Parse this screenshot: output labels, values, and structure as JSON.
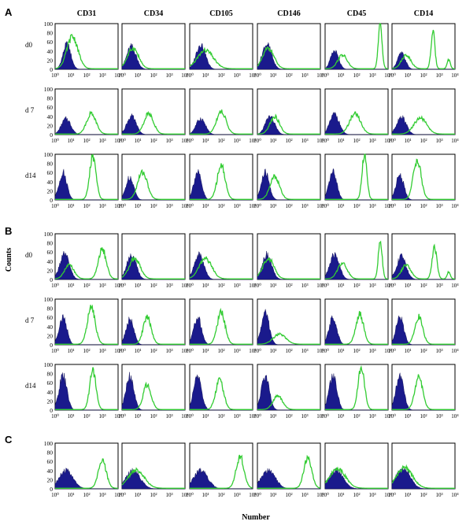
{
  "figure": {
    "y_axis_label": "Counts",
    "x_axis_label": "Number",
    "colors": {
      "control_fill": "#1a1a8c",
      "marker_line": "#33cc33",
      "frame": "#000000"
    }
  },
  "chart_data": {
    "type": "histogram-grid",
    "x_scale": "log",
    "x_range": [
      1,
      10000
    ],
    "x_tick_labels": [
      "10⁰",
      "10¹",
      "10²",
      "10³",
      "10⁴"
    ],
    "y_range": [
      0,
      100
    ],
    "y_tick_labels": [
      "0",
      "20",
      "40",
      "60",
      "80",
      "100"
    ],
    "columns": [
      "CD31",
      "CD34",
      "CD105",
      "CD146",
      "CD45",
      "CD14"
    ],
    "panel_groups": [
      {
        "label": "A",
        "rows": [
          {
            "label": "d0",
            "cells": [
              {
                "control": {
                  "mu": 0.75,
                  "sigma": 0.25,
                  "height": 55
                },
                "marker": [
                  {
                    "mu": 1.1,
                    "sigma": 0.35,
                    "height": 70
                  }
                ]
              },
              {
                "control": {
                  "mu": 0.6,
                  "sigma": 0.3,
                  "height": 50
                },
                "marker": [
                  {
                    "mu": 0.7,
                    "sigma": 0.35,
                    "height": 45
                  }
                ]
              },
              {
                "control": {
                  "mu": 0.7,
                  "sigma": 0.3,
                  "height": 55
                },
                "marker": [
                  {
                    "mu": 1.0,
                    "sigma": 0.5,
                    "height": 40
                  }
                ]
              },
              {
                "control": {
                  "mu": 0.6,
                  "sigma": 0.3,
                  "height": 55
                },
                "marker": [
                  {
                    "mu": 0.7,
                    "sigma": 0.35,
                    "height": 45
                  }
                ]
              },
              {
                "control": {
                  "mu": 0.6,
                  "sigma": 0.25,
                  "height": 40
                },
                "marker": [
                  {
                    "mu": 1.1,
                    "sigma": 0.3,
                    "height": 30
                  },
                  {
                    "mu": 3.5,
                    "sigma": 0.12,
                    "height": 95
                  }
                ]
              },
              {
                "control": {
                  "mu": 0.6,
                  "sigma": 0.25,
                  "height": 35
                },
                "marker": [
                  {
                    "mu": 0.9,
                    "sigma": 0.3,
                    "height": 30
                  },
                  {
                    "mu": 2.6,
                    "sigma": 0.12,
                    "height": 80
                  },
                  {
                    "mu": 3.6,
                    "sigma": 0.1,
                    "height": 20
                  }
                ]
              }
            ]
          },
          {
            "label": "d 7",
            "cells": [
              {
                "control": {
                  "mu": 0.7,
                  "sigma": 0.3,
                  "height": 35
                },
                "marker": [
                  {
                    "mu": 2.3,
                    "sigma": 0.3,
                    "height": 45
                  }
                ]
              },
              {
                "control": {
                  "mu": 0.6,
                  "sigma": 0.3,
                  "height": 40
                },
                "marker": [
                  {
                    "mu": 1.7,
                    "sigma": 0.3,
                    "height": 45
                  }
                ]
              },
              {
                "control": {
                  "mu": 0.7,
                  "sigma": 0.3,
                  "height": 35
                },
                "marker": [
                  {
                    "mu": 2.0,
                    "sigma": 0.3,
                    "height": 50
                  }
                ]
              },
              {
                "control": {
                  "mu": 0.8,
                  "sigma": 0.3,
                  "height": 40
                },
                "marker": [
                  {
                    "mu": 1.1,
                    "sigma": 0.3,
                    "height": 38
                  }
                ]
              },
              {
                "control": {
                  "mu": 0.6,
                  "sigma": 0.3,
                  "height": 45
                },
                "marker": [
                  {
                    "mu": 1.9,
                    "sigma": 0.35,
                    "height": 45
                  }
                ]
              },
              {
                "control": {
                  "mu": 0.6,
                  "sigma": 0.3,
                  "height": 40
                },
                "marker": [
                  {
                    "mu": 1.8,
                    "sigma": 0.4,
                    "height": 35
                  }
                ]
              }
            ]
          },
          {
            "label": "d14",
            "cells": [
              {
                "control": {
                  "mu": 0.5,
                  "sigma": 0.25,
                  "height": 60
                },
                "marker": [
                  {
                    "mu": 2.4,
                    "sigma": 0.2,
                    "height": 95
                  }
                ]
              },
              {
                "control": {
                  "mu": 0.5,
                  "sigma": 0.25,
                  "height": 50
                },
                "marker": [
                  {
                    "mu": 1.3,
                    "sigma": 0.3,
                    "height": 60
                  }
                ]
              },
              {
                "control": {
                  "mu": 0.5,
                  "sigma": 0.25,
                  "height": 60
                },
                "marker": [
                  {
                    "mu": 2.0,
                    "sigma": 0.25,
                    "height": 75
                  }
                ]
              },
              {
                "control": {
                  "mu": 0.5,
                  "sigma": 0.25,
                  "height": 60
                },
                "marker": [
                  {
                    "mu": 1.1,
                    "sigma": 0.3,
                    "height": 50
                  }
                ]
              },
              {
                "control": {
                  "mu": 0.5,
                  "sigma": 0.25,
                  "height": 60
                },
                "marker": [
                  {
                    "mu": 2.5,
                    "sigma": 0.15,
                    "height": 100
                  }
                ]
              },
              {
                "control": {
                  "mu": 0.5,
                  "sigma": 0.25,
                  "height": 55
                },
                "marker": [
                  {
                    "mu": 1.6,
                    "sigma": 0.25,
                    "height": 85
                  }
                ]
              }
            ]
          }
        ]
      },
      {
        "label": "B",
        "rows": [
          {
            "label": "d0",
            "cells": [
              {
                "control": {
                  "mu": 0.6,
                  "sigma": 0.3,
                  "height": 55
                },
                "marker": [
                  {
                    "mu": 0.9,
                    "sigma": 0.3,
                    "height": 30
                  },
                  {
                    "mu": 3.0,
                    "sigma": 0.25,
                    "height": 65
                  }
                ]
              },
              {
                "control": {
                  "mu": 0.6,
                  "sigma": 0.3,
                  "height": 55
                },
                "marker": [
                  {
                    "mu": 0.8,
                    "sigma": 0.35,
                    "height": 45
                  }
                ]
              },
              {
                "control": {
                  "mu": 0.6,
                  "sigma": 0.3,
                  "height": 55
                },
                "marker": [
                  {
                    "mu": 1.0,
                    "sigma": 0.4,
                    "height": 45
                  }
                ]
              },
              {
                "control": {
                  "mu": 0.6,
                  "sigma": 0.3,
                  "height": 55
                },
                "marker": [
                  {
                    "mu": 0.7,
                    "sigma": 0.35,
                    "height": 45
                  }
                ]
              },
              {
                "control": {
                  "mu": 0.6,
                  "sigma": 0.3,
                  "height": 55
                },
                "marker": [
                  {
                    "mu": 1.1,
                    "sigma": 0.3,
                    "height": 35
                  },
                  {
                    "mu": 3.5,
                    "sigma": 0.12,
                    "height": 85
                  }
                ]
              },
              {
                "control": {
                  "mu": 0.6,
                  "sigma": 0.3,
                  "height": 50
                },
                "marker": [
                  {
                    "mu": 0.9,
                    "sigma": 0.3,
                    "height": 30
                  },
                  {
                    "mu": 2.7,
                    "sigma": 0.15,
                    "height": 70
                  },
                  {
                    "mu": 3.6,
                    "sigma": 0.1,
                    "height": 15
                  }
                ]
              }
            ]
          },
          {
            "label": "d 7",
            "cells": [
              {
                "control": {
                  "mu": 0.5,
                  "sigma": 0.25,
                  "height": 60
                },
                "marker": [
                  {
                    "mu": 2.3,
                    "sigma": 0.25,
                    "height": 80
                  }
                ]
              },
              {
                "control": {
                  "mu": 0.5,
                  "sigma": 0.25,
                  "height": 55
                },
                "marker": [
                  {
                    "mu": 1.6,
                    "sigma": 0.25,
                    "height": 60
                  }
                ]
              },
              {
                "control": {
                  "mu": 0.5,
                  "sigma": 0.25,
                  "height": 60
                },
                "marker": [
                  {
                    "mu": 2.0,
                    "sigma": 0.25,
                    "height": 70
                  }
                ]
              },
              {
                "control": {
                  "mu": 0.5,
                  "sigma": 0.25,
                  "height": 70
                },
                "marker": [
                  {
                    "mu": 1.4,
                    "sigma": 0.4,
                    "height": 22
                  }
                ]
              },
              {
                "control": {
                  "mu": 0.5,
                  "sigma": 0.25,
                  "height": 60
                },
                "marker": [
                  {
                    "mu": 2.2,
                    "sigma": 0.25,
                    "height": 65
                  }
                ]
              },
              {
                "control": {
                  "mu": 0.5,
                  "sigma": 0.25,
                  "height": 60
                },
                "marker": [
                  {
                    "mu": 1.7,
                    "sigma": 0.25,
                    "height": 60
                  }
                ]
              }
            ]
          },
          {
            "label": "d14",
            "cells": [
              {
                "control": {
                  "mu": 0.5,
                  "sigma": 0.25,
                  "height": 75
                },
                "marker": [
                  {
                    "mu": 2.4,
                    "sigma": 0.2,
                    "height": 85
                  }
                ]
              },
              {
                "control": {
                  "mu": 0.5,
                  "sigma": 0.25,
                  "height": 75
                },
                "marker": [
                  {
                    "mu": 1.6,
                    "sigma": 0.25,
                    "height": 55
                  }
                ]
              },
              {
                "control": {
                  "mu": 0.5,
                  "sigma": 0.25,
                  "height": 75
                },
                "marker": [
                  {
                    "mu": 1.9,
                    "sigma": 0.25,
                    "height": 65
                  }
                ]
              },
              {
                "control": {
                  "mu": 0.5,
                  "sigma": 0.25,
                  "height": 75
                },
                "marker": [
                  {
                    "mu": 1.3,
                    "sigma": 0.3,
                    "height": 30
                  }
                ]
              },
              {
                "control": {
                  "mu": 0.5,
                  "sigma": 0.25,
                  "height": 75
                },
                "marker": [
                  {
                    "mu": 2.3,
                    "sigma": 0.2,
                    "height": 95
                  }
                ]
              },
              {
                "control": {
                  "mu": 0.5,
                  "sigma": 0.25,
                  "height": 75
                },
                "marker": [
                  {
                    "mu": 1.7,
                    "sigma": 0.25,
                    "height": 70
                  }
                ]
              }
            ]
          }
        ]
      },
      {
        "label": "C",
        "rows": [
          {
            "label": "",
            "cells": [
              {
                "control": {
                  "mu": 0.7,
                  "sigma": 0.45,
                  "height": 40
                },
                "marker": [
                  {
                    "mu": 3.0,
                    "sigma": 0.25,
                    "height": 60
                  }
                ]
              },
              {
                "control": {
                  "mu": 0.7,
                  "sigma": 0.45,
                  "height": 40
                },
                "marker": [
                  {
                    "mu": 0.9,
                    "sigma": 0.5,
                    "height": 40
                  }
                ]
              },
              {
                "control": {
                  "mu": 0.7,
                  "sigma": 0.45,
                  "height": 40
                },
                "marker": [
                  {
                    "mu": 3.2,
                    "sigma": 0.25,
                    "height": 70
                  }
                ]
              },
              {
                "control": {
                  "mu": 0.7,
                  "sigma": 0.45,
                  "height": 40
                },
                "marker": [
                  {
                    "mu": 3.2,
                    "sigma": 0.25,
                    "height": 65
                  }
                ]
              },
              {
                "control": {
                  "mu": 0.7,
                  "sigma": 0.45,
                  "height": 40
                },
                "marker": [
                  {
                    "mu": 0.8,
                    "sigma": 0.5,
                    "height": 42
                  }
                ]
              },
              {
                "control": {
                  "mu": 0.7,
                  "sigma": 0.45,
                  "height": 45
                },
                "marker": [
                  {
                    "mu": 0.8,
                    "sigma": 0.5,
                    "height": 45
                  }
                ]
              }
            ]
          }
        ]
      }
    ]
  }
}
